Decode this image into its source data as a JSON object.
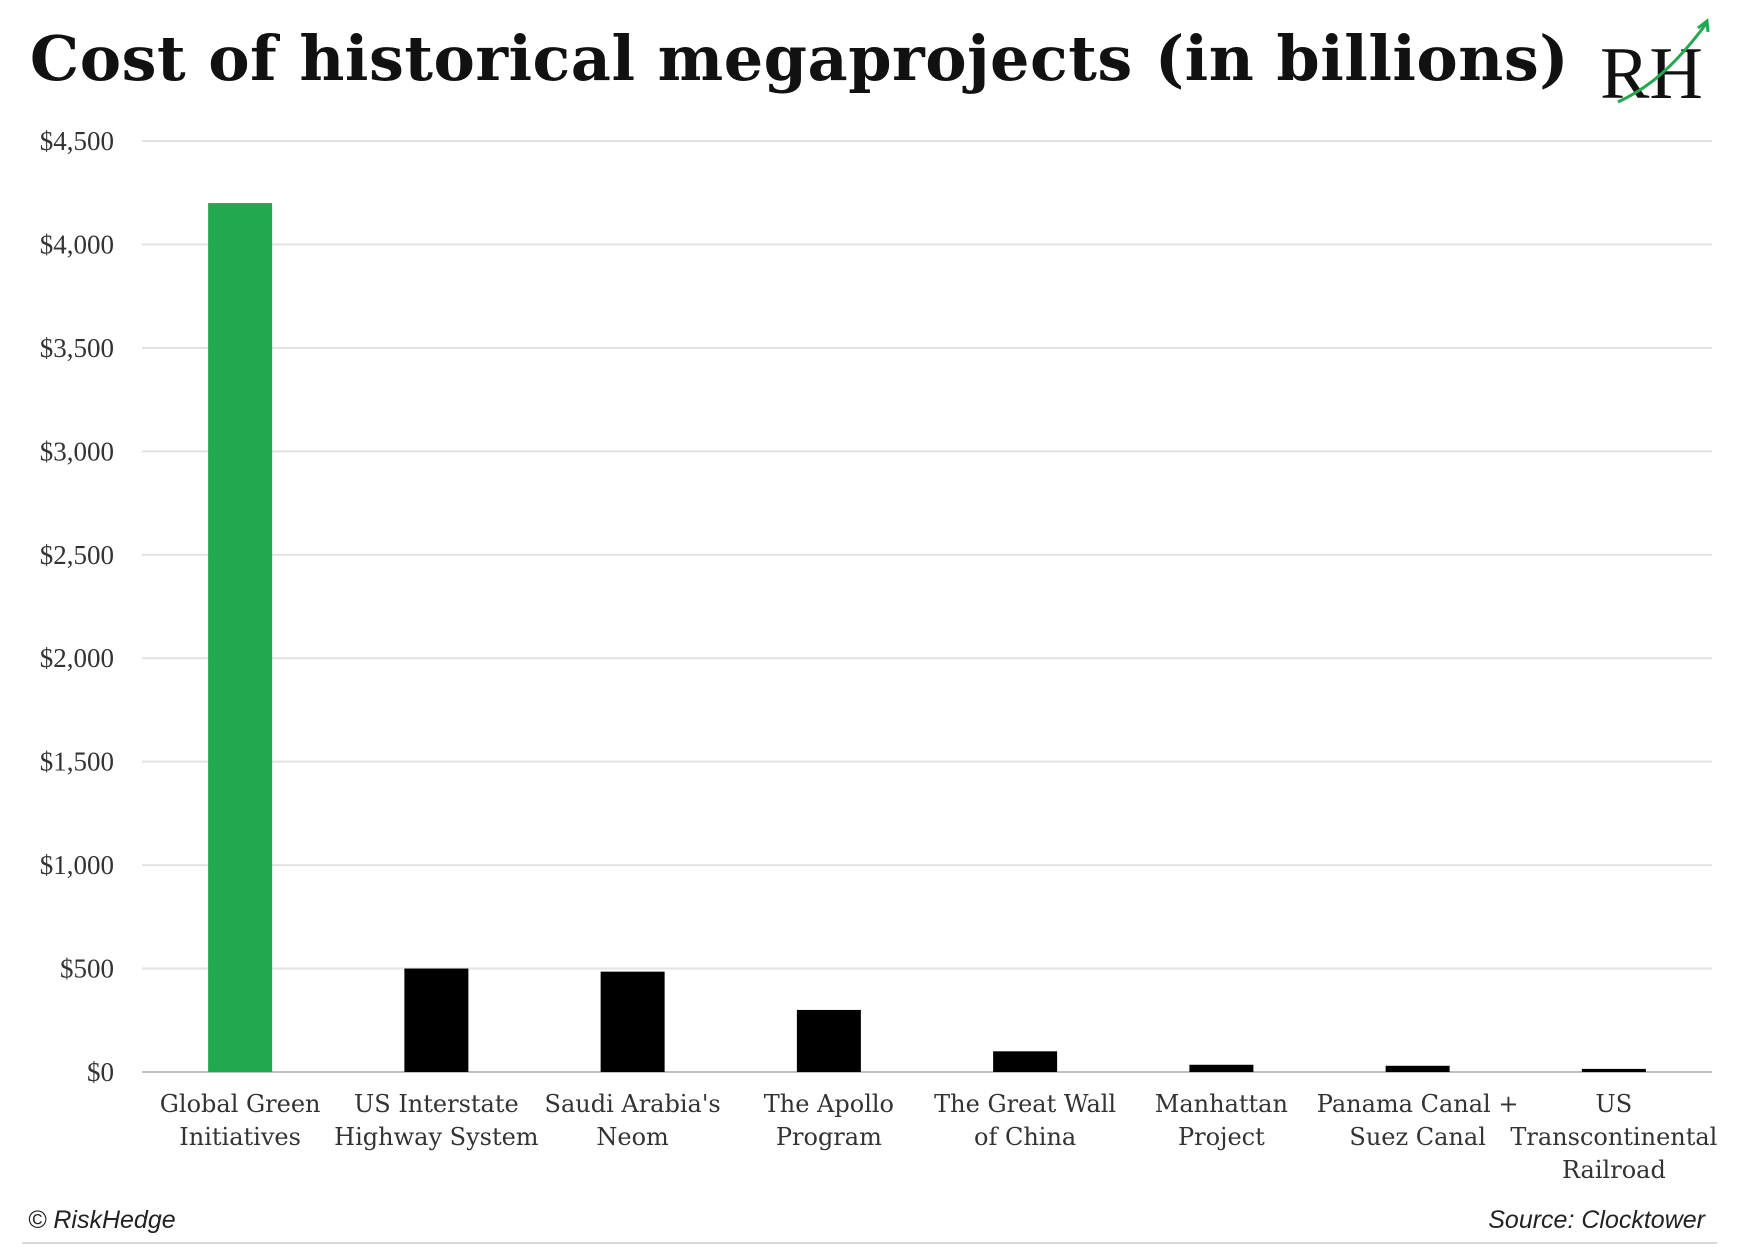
{
  "chart_data": {
    "type": "bar",
    "title": "Cost of historical megaprojects (in billions)",
    "categories": [
      [
        "Global Green",
        "Initiatives"
      ],
      [
        "US Interstate",
        "Highway System"
      ],
      [
        "Saudi Arabia's",
        "Neom"
      ],
      [
        "The Apollo",
        "Program"
      ],
      [
        "The Great Wall",
        "of China"
      ],
      [
        "Manhattan",
        "Project"
      ],
      [
        "Panama Canal +",
        "Suez Canal"
      ],
      [
        "US",
        "Transcontinental",
        "Railroad"
      ]
    ],
    "values": [
      4200,
      500,
      485,
      300,
      100,
      35,
      30,
      15
    ],
    "bar_colors": [
      "#22a84f",
      "#000000",
      "#000000",
      "#000000",
      "#000000",
      "#000000",
      "#000000",
      "#000000"
    ],
    "ylim": [
      0,
      4500
    ],
    "yticks": [
      0,
      500,
      1000,
      1500,
      2000,
      2500,
      3000,
      3500,
      4000,
      4500
    ],
    "ytick_labels": [
      "$0",
      "$500",
      "$1,000",
      "$1,500",
      "$2,000",
      "$2,500",
      "$3,000",
      "$3,500",
      "$4,000",
      "$4,500"
    ],
    "grid": true,
    "legend": "none"
  },
  "footer": {
    "copyright": "© RiskHedge",
    "source": "Source: Clocktower"
  },
  "logo": {
    "text": "RH",
    "accent_color": "#22a84f"
  }
}
